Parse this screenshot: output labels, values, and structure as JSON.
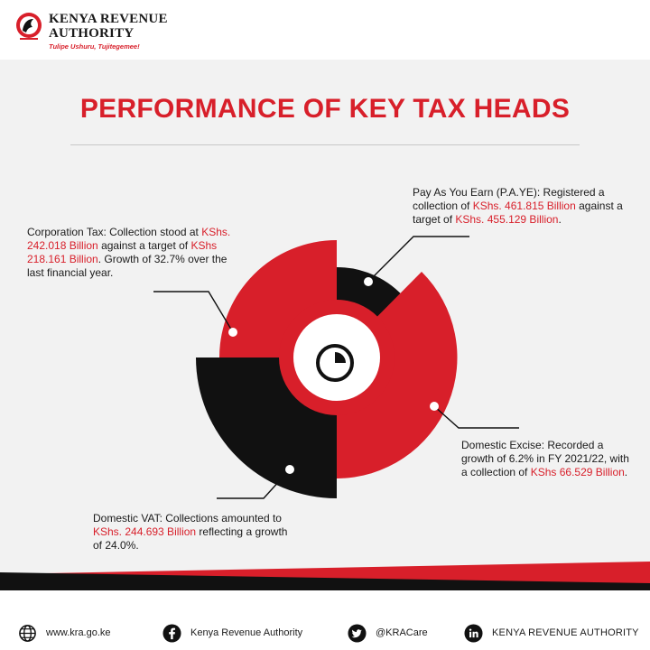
{
  "header": {
    "brand_line1": "KENYA REVENUE",
    "brand_line2": "AUTHORITY",
    "tagline": "Tulipe Ushuru, Tujitegemee!"
  },
  "title": "PERFORMANCE OF KEY TAX HEADS",
  "center_icon": "clock-icon",
  "notes": {
    "corporation": {
      "label": "Corporation Tax:",
      "t1": " Collection stood at ",
      "v1": "KShs. 242.018 Billion",
      "t2": " against a target of ",
      "v2": "KShs 218.161 Billion",
      "t3": ". Growth of 32.7% over the last financial year."
    },
    "paye": {
      "label": "Pay As You Earn (P.A.YE):",
      "t1": " Registered a collection of ",
      "v1": "KShs. 461.815 Billion",
      "t2": " against a target of ",
      "v2": "KShs. 455.129 Billion",
      "t3": "."
    },
    "excise": {
      "label": "Domestic Excise:",
      "t1": " Recorded a growth of 6.2% in FY 2021/22, with a collection of ",
      "v1": "KShs 66.529 Billion",
      "t2": "."
    },
    "vat": {
      "label": "Domestic VAT:",
      "t1": " Collections amounted to ",
      "v1": "KShs. 244.693 Billion",
      "t2": " reflecting a growth of 24.0%."
    }
  },
  "footer": {
    "website": "www.kra.go.ke",
    "facebook": "Kenya Revenue Authority",
    "twitter": "@KRACare",
    "linkedin": "KENYA REVENUE AUTHORITY"
  },
  "colors": {
    "brand_red": "#d81f2a",
    "black": "#111111",
    "panel": "#f2f2f2"
  }
}
